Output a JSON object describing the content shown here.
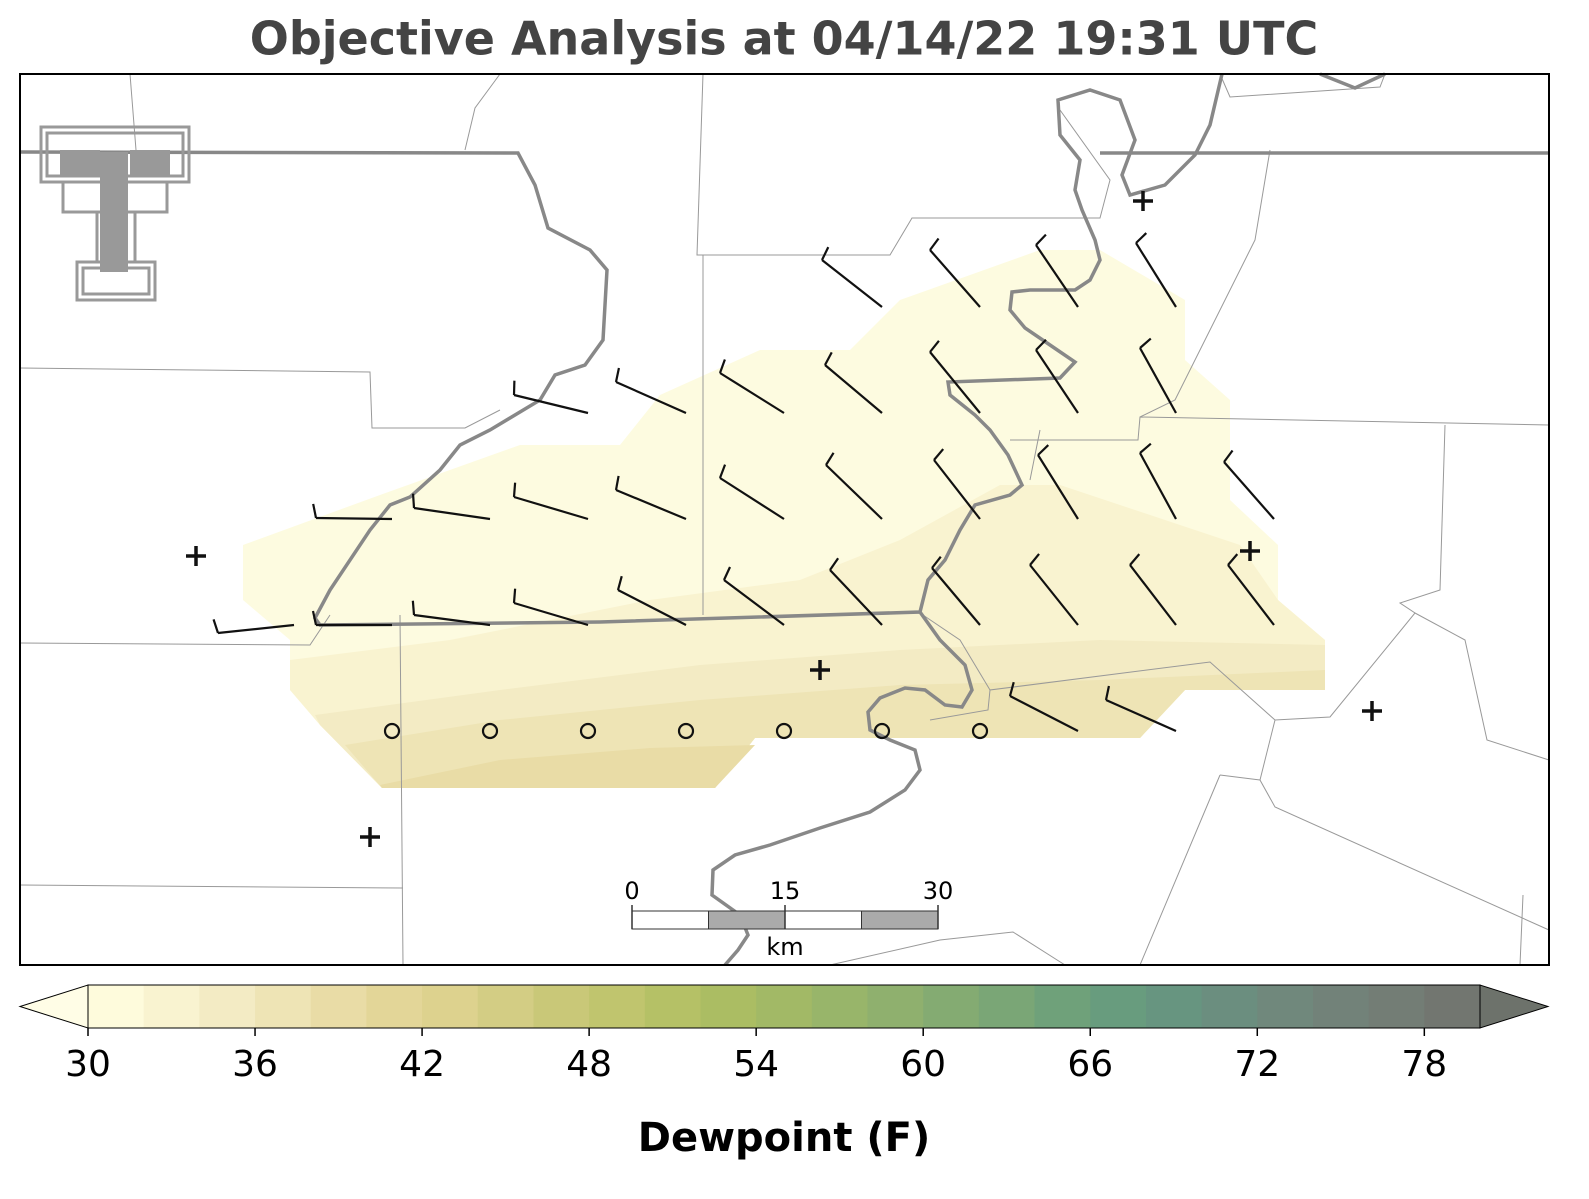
{
  "title": "Objective Analysis at 04/14/22 19:31 UTC",
  "scale_bar": {
    "ticks": [
      0,
      15,
      30
    ],
    "unit": "km"
  },
  "colorbar": {
    "label": "Dewpoint (F)",
    "levels": [
      30,
      32,
      34,
      36,
      38,
      40,
      42,
      44,
      46,
      48,
      50,
      52,
      54,
      56,
      58,
      60,
      62,
      64,
      66,
      68,
      70,
      72,
      74,
      76,
      78,
      80
    ],
    "colors": [
      "#fefbdc",
      "#f9f3d0",
      "#f3ebc4",
      "#eee4b5",
      "#e9dca6",
      "#e3d698",
      "#ddd28e",
      "#d3cd84",
      "#c9c878",
      "#c0c56e",
      "#b5c166",
      "#abbd63",
      "#a2b966",
      "#98b56a",
      "#8fb06e",
      "#84ab72",
      "#7aa676",
      "#6fa17a",
      "#689c7e",
      "#679580",
      "#6b8e7f",
      "#70887c",
      "#728279",
      "#737d75",
      "#727670"
    ],
    "under_color": "#fffde6",
    "over_color": "#6d726b",
    "ticks": [
      30,
      36,
      42,
      48,
      54,
      60,
      66,
      72,
      78
    ]
  }
}
